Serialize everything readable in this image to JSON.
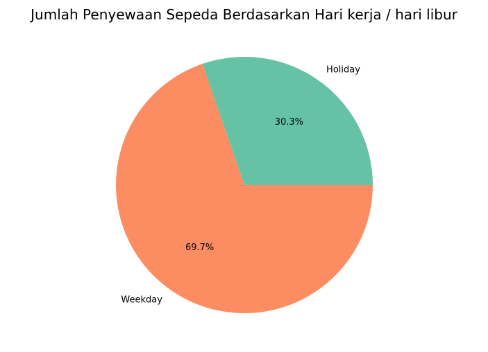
{
  "chart_data": {
    "type": "pie",
    "title": "Jumlah Penyewaan Sepeda Berdasarkan Hari kerja / hari libur",
    "labels": [
      "Holiday",
      "Weekday"
    ],
    "values": [
      30.3,
      69.7
    ],
    "percent_labels": [
      "30.3%",
      "69.7%"
    ],
    "colors": [
      "#66c2a5",
      "#fc8d62"
    ],
    "start_angle_deg": 0,
    "direction": "counterclockwise",
    "legend": "none"
  }
}
